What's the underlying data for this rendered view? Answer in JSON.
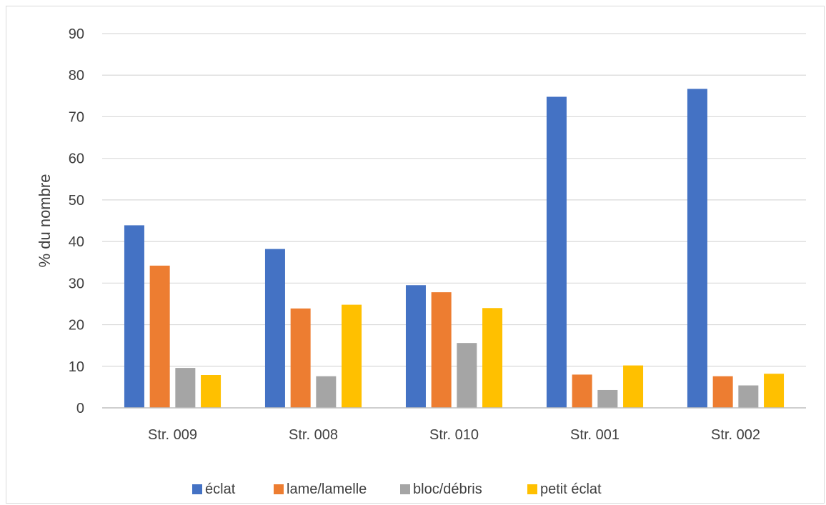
{
  "chart_data": {
    "type": "bar",
    "title": "",
    "xlabel": "",
    "ylabel": "% du nombre",
    "ylim": [
      0,
      90
    ],
    "yticks": [
      0,
      10,
      20,
      30,
      40,
      50,
      60,
      70,
      80,
      90
    ],
    "grid": true,
    "legend_position": "bottom",
    "categories": [
      "Str. 009",
      "Str. 008",
      "Str. 010",
      "Str. 001",
      "Str. 002"
    ],
    "series": [
      {
        "name": "éclat",
        "color": "#4472c4",
        "values": [
          43.9,
          38.2,
          29.5,
          74.8,
          76.7
        ]
      },
      {
        "name": "lame/lamelle",
        "color": "#ed7d31",
        "values": [
          34.2,
          23.9,
          27.8,
          8.0,
          7.6
        ]
      },
      {
        "name": "bloc/débris",
        "color": "#a5a5a5",
        "values": [
          9.6,
          7.6,
          15.6,
          4.3,
          5.4
        ]
      },
      {
        "name": "petit éclat",
        "color": "#ffc000",
        "values": [
          7.9,
          24.8,
          24.0,
          10.2,
          8.2
        ]
      }
    ]
  }
}
